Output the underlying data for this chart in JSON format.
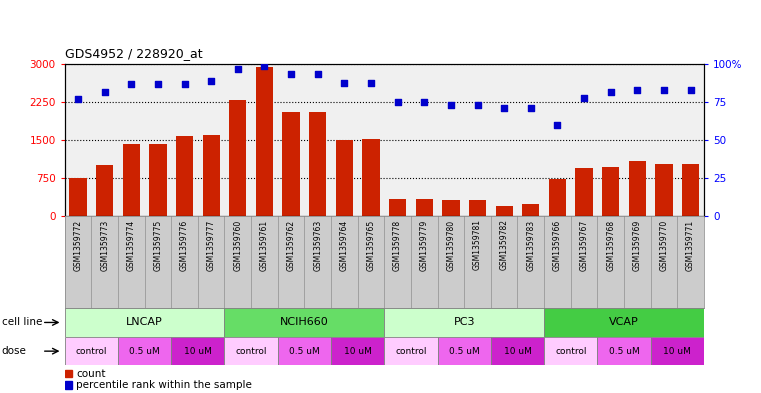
{
  "title": "GDS4952 / 228920_at",
  "samples": [
    "GSM1359772",
    "GSM1359773",
    "GSM1359774",
    "GSM1359775",
    "GSM1359776",
    "GSM1359777",
    "GSM1359760",
    "GSM1359761",
    "GSM1359762",
    "GSM1359763",
    "GSM1359764",
    "GSM1359765",
    "GSM1359778",
    "GSM1359779",
    "GSM1359780",
    "GSM1359781",
    "GSM1359782",
    "GSM1359783",
    "GSM1359766",
    "GSM1359767",
    "GSM1359768",
    "GSM1359769",
    "GSM1359770",
    "GSM1359771"
  ],
  "counts": [
    750,
    1000,
    1420,
    1430,
    1580,
    1600,
    2300,
    2950,
    2050,
    2060,
    1500,
    1520,
    330,
    330,
    310,
    310,
    200,
    230,
    730,
    950,
    960,
    1080,
    1030,
    1020
  ],
  "percentiles": [
    77,
    82,
    87,
    87,
    87,
    89,
    97,
    99,
    94,
    94,
    88,
    88,
    75,
    75,
    73,
    73,
    71,
    71,
    60,
    78,
    82,
    83,
    83,
    83
  ],
  "cell_lines": [
    {
      "name": "LNCAP",
      "start": 0,
      "end": 6,
      "color": "#ccffcc"
    },
    {
      "name": "NCIH660",
      "start": 6,
      "end": 12,
      "color": "#66dd66"
    },
    {
      "name": "PC3",
      "start": 12,
      "end": 18,
      "color": "#ccffcc"
    },
    {
      "name": "VCAP",
      "start": 18,
      "end": 24,
      "color": "#44cc44"
    }
  ],
  "dose_groups": [
    {
      "label": "control",
      "start": 0,
      "end": 2,
      "color": "#ffccff"
    },
    {
      "label": "0.5 uM",
      "start": 2,
      "end": 4,
      "color": "#ee66ee"
    },
    {
      "label": "10 uM",
      "start": 4,
      "end": 6,
      "color": "#cc22cc"
    },
    {
      "label": "control",
      "start": 6,
      "end": 8,
      "color": "#ffccff"
    },
    {
      "label": "0.5 uM",
      "start": 8,
      "end": 10,
      "color": "#ee66ee"
    },
    {
      "label": "10 uM",
      "start": 10,
      "end": 12,
      "color": "#cc22cc"
    },
    {
      "label": "control",
      "start": 12,
      "end": 14,
      "color": "#ffccff"
    },
    {
      "label": "0.5 uM",
      "start": 14,
      "end": 16,
      "color": "#ee66ee"
    },
    {
      "label": "10 uM",
      "start": 16,
      "end": 18,
      "color": "#cc22cc"
    },
    {
      "label": "control",
      "start": 18,
      "end": 20,
      "color": "#ffccff"
    },
    {
      "label": "0.5 uM",
      "start": 20,
      "end": 22,
      "color": "#ee66ee"
    },
    {
      "label": "10 uM",
      "start": 22,
      "end": 24,
      "color": "#cc22cc"
    }
  ],
  "bar_color": "#cc2200",
  "dot_color": "#0000cc",
  "ylim_left": [
    0,
    3000
  ],
  "yticks_left": [
    0,
    750,
    1500,
    2250,
    3000
  ],
  "ylim_right": [
    0,
    100
  ],
  "yticks_right": [
    0,
    25,
    50,
    75,
    100
  ],
  "bar_width": 0.65,
  "label_area_color": "#cccccc",
  "plot_bg": "#f0f0f0"
}
